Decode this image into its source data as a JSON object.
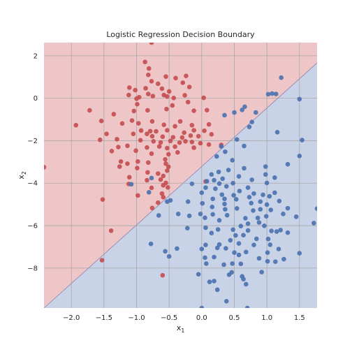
{
  "chart_data": {
    "type": "scatter",
    "title": "Logistic Regression Decision Boundary",
    "xlabel": "x",
    "xlabel_sub": "1",
    "ylabel": "x",
    "ylabel_sub": "2",
    "xlim": [
      -2.42,
      1.77
    ],
    "ylim": [
      -9.88,
      2.62
    ],
    "grid": true,
    "legend": "none",
    "xticks": [
      -2.0,
      -1.5,
      -1.0,
      -0.5,
      0.0,
      0.5,
      1.0,
      1.5
    ],
    "xtick_labels": [
      "−2.0",
      "−1.5",
      "−1.0",
      "−0.5",
      "0.0",
      "0.5",
      "1.0",
      "1.5"
    ],
    "yticks": [
      2,
      0,
      -2,
      -4,
      -6,
      -8
    ],
    "ytick_labels": [
      "2",
      "0",
      "−2",
      "−4",
      "−6",
      "−8"
    ],
    "decision_boundary": {
      "x": [
        -2.42,
        1.77
      ],
      "y": [
        -9.88,
        1.66
      ]
    },
    "colors": {
      "class0": "#c44e52",
      "class1": "#4c72b0",
      "region0": "#efc6c7",
      "region1": "#c9d3e7",
      "grid": "#a8a8a8",
      "boundary": "#9c8fb5"
    },
    "series": [
      {
        "class": 0,
        "points": [
          [
            -0.77,
            2.62
          ],
          [
            -0.87,
            1.71
          ],
          [
            -0.81,
            1.4
          ],
          [
            -0.82,
            1.1
          ],
          [
            -0.55,
            1.02
          ],
          [
            -0.24,
            1.05
          ],
          [
            -0.4,
            0.95
          ],
          [
            -0.77,
            0.8
          ],
          [
            -0.67,
            0.68
          ],
          [
            -0.29,
            0.73
          ],
          [
            -0.19,
            0.53
          ],
          [
            -0.61,
            0.45
          ],
          [
            -0.86,
            0.47
          ],
          [
            -1.11,
            0.5
          ],
          [
            -1.02,
            0.38
          ],
          [
            -0.5,
            0.32
          ],
          [
            -0.58,
            0.15
          ],
          [
            -0.82,
            0.2
          ],
          [
            -1.12,
            0.15
          ],
          [
            -0.26,
            0.14
          ],
          [
            -0.53,
            0.08
          ],
          [
            -0.96,
            0.05
          ],
          [
            -1.0,
            -0.02
          ],
          [
            -0.75,
            0.1
          ],
          [
            -0.43,
            0.01
          ],
          [
            0.03,
            0.02
          ],
          [
            -0.21,
            -0.18
          ],
          [
            -0.45,
            -0.34
          ],
          [
            -0.99,
            -0.28
          ],
          [
            -1.72,
            -0.57
          ],
          [
            -1.04,
            -0.6
          ],
          [
            -0.83,
            -0.57
          ],
          [
            -0.54,
            -0.51
          ],
          [
            0.08,
            -0.56
          ],
          [
            -0.12,
            -0.59
          ],
          [
            -1.35,
            -0.75
          ],
          [
            -1.54,
            -1.07
          ],
          [
            -1.07,
            -1.05
          ],
          [
            -1.22,
            -1.19
          ],
          [
            -0.97,
            -1.18
          ],
          [
            -0.76,
            -1.09
          ],
          [
            -0.58,
            -1.25
          ],
          [
            -0.41,
            -1.32
          ],
          [
            -0.33,
            -1.09
          ],
          [
            -0.15,
            -1.27
          ],
          [
            0.11,
            -1.23
          ],
          [
            -1.93,
            -1.27
          ],
          [
            -0.93,
            -1.52
          ],
          [
            -0.79,
            -1.55
          ],
          [
            -0.7,
            -1.56
          ],
          [
            -0.53,
            -1.51
          ],
          [
            -0.27,
            -1.62
          ],
          [
            -0.12,
            -1.51
          ],
          [
            0.04,
            -1.53
          ],
          [
            -1.46,
            -1.68
          ],
          [
            -1.05,
            -1.68
          ],
          [
            -0.84,
            -1.68
          ],
          [
            -0.76,
            -1.79
          ],
          [
            -0.6,
            -1.81
          ],
          [
            -0.44,
            -1.84
          ],
          [
            -0.3,
            -1.85
          ],
          [
            -0.17,
            -1.76
          ],
          [
            -0.05,
            -1.79
          ],
          [
            0.15,
            -1.7
          ],
          [
            -1.56,
            -1.96
          ],
          [
            -1.3,
            -1.93
          ],
          [
            -0.94,
            -1.98
          ],
          [
            -0.74,
            -2.03
          ],
          [
            -0.63,
            -2.08
          ],
          [
            -0.48,
            -2.01
          ],
          [
            -0.34,
            -2.09
          ],
          [
            -0.25,
            -2.03
          ],
          [
            -0.15,
            -2.06
          ],
          [
            -0.02,
            -2.12
          ],
          [
            0.11,
            -2.18
          ],
          [
            0.3,
            -2.2
          ],
          [
            -1.28,
            -2.3
          ],
          [
            -1.14,
            -2.24
          ],
          [
            -0.84,
            -2.32
          ],
          [
            -0.65,
            -2.27
          ],
          [
            -0.53,
            -2.35
          ],
          [
            -0.41,
            -2.28
          ],
          [
            -0.12,
            -2.33
          ],
          [
            -1.38,
            -2.49
          ],
          [
            -1.01,
            -2.47
          ],
          [
            -0.77,
            -2.61
          ],
          [
            -0.51,
            -2.64
          ],
          [
            -0.37,
            -2.55
          ],
          [
            -0.56,
            -2.88
          ],
          [
            -1.24,
            -2.98
          ],
          [
            -1.14,
            -3.08
          ],
          [
            -0.98,
            -2.98
          ],
          [
            -0.82,
            -3.03
          ],
          [
            -0.55,
            -3.08
          ],
          [
            -1.26,
            -3.22
          ],
          [
            -0.99,
            -3.29
          ],
          [
            -0.51,
            -3.23
          ],
          [
            -0.53,
            -3.41
          ],
          [
            -1.11,
            -3.72
          ],
          [
            -0.83,
            -3.49
          ],
          [
            -0.67,
            -3.55
          ],
          [
            -1.12,
            -4.04
          ],
          [
            -0.59,
            -3.66
          ],
          [
            -0.63,
            -3.83
          ],
          [
            -0.84,
            -3.86
          ],
          [
            -0.55,
            -3.99
          ],
          [
            -0.59,
            -4.1
          ],
          [
            -0.52,
            -4.2
          ],
          [
            -0.77,
            -4.22
          ],
          [
            -0.61,
            -4.49
          ],
          [
            -0.98,
            -4.58
          ],
          [
            -0.59,
            -4.66
          ],
          [
            -0.67,
            -4.92
          ],
          [
            -1.52,
            -4.77
          ],
          [
            -0.76,
            -5.17
          ],
          [
            -2.42,
            -3.25
          ],
          [
            -1.39,
            -6.24
          ],
          [
            -1.53,
            -7.63
          ],
          [
            -0.6,
            -8.34
          ],
          [
            0.06,
            -3.92
          ]
        ]
      },
      {
        "class": 1,
        "points": [
          [
            1.22,
            0.97
          ],
          [
            1.5,
            -0.04
          ],
          [
            1.02,
            0.19
          ],
          [
            1.08,
            0.22
          ],
          [
            1.14,
            0.2
          ],
          [
            0.62,
            -0.55
          ],
          [
            0.66,
            -0.4
          ],
          [
            0.5,
            -0.67
          ],
          [
            0.83,
            -0.67
          ],
          [
            0.35,
            -0.8
          ],
          [
            0.77,
            -1.12
          ],
          [
            0.73,
            -1.35
          ],
          [
            1.16,
            -1.6
          ],
          [
            0.54,
            -1.94
          ],
          [
            0.65,
            -2.25
          ],
          [
            1.54,
            -1.97
          ],
          [
            0.3,
            -2.27
          ],
          [
            0.36,
            -2.52
          ],
          [
            0.23,
            -2.74
          ],
          [
            0.47,
            -2.92
          ],
          [
            0.65,
            -3.3
          ],
          [
            0.98,
            -3.22
          ],
          [
            0.15,
            -3.59
          ],
          [
            0.26,
            -3.47
          ],
          [
            0.41,
            -3.38
          ],
          [
            0.32,
            -3.79
          ],
          [
            0.19,
            -3.86
          ],
          [
            1.5,
            -2.72
          ],
          [
            1.32,
            -3.11
          ],
          [
            0.57,
            -3.68
          ],
          [
            0.77,
            -3.84
          ],
          [
            1.12,
            -3.74
          ],
          [
            -0.77,
            -3.76
          ],
          [
            -1.08,
            -4.05
          ],
          [
            0.08,
            -3.91
          ],
          [
            0.27,
            -4.02
          ],
          [
            0.48,
            -4.0
          ],
          [
            0.71,
            -4.21
          ],
          [
            0.98,
            -3.59
          ],
          [
            1.0,
            -3.99
          ],
          [
            -0.15,
            -4.03
          ],
          [
            0.06,
            -4.21
          ],
          [
            0.21,
            -4.26
          ],
          [
            0.38,
            -4.15
          ],
          [
            0.58,
            -4.37
          ],
          [
            0.8,
            -4.49
          ],
          [
            -0.81,
            -4.43
          ],
          [
            0.0,
            -4.45
          ],
          [
            0.31,
            -4.54
          ],
          [
            0.49,
            -4.57
          ],
          [
            0.73,
            -4.66
          ],
          [
            0.94,
            -4.55
          ],
          [
            1.04,
            -4.62
          ],
          [
            1.12,
            -4.45
          ],
          [
            1.19,
            -4.84
          ],
          [
            0.17,
            -4.74
          ],
          [
            0.35,
            -4.74
          ],
          [
            0.53,
            -4.76
          ],
          [
            0.76,
            -4.94
          ],
          [
            0.9,
            -4.87
          ],
          [
            -0.48,
            -4.81
          ],
          [
            -0.53,
            -4.87
          ],
          [
            -0.21,
            -4.87
          ],
          [
            0.01,
            -4.95
          ],
          [
            0.16,
            -5.12
          ],
          [
            0.35,
            -4.98
          ],
          [
            0.36,
            -5.23
          ],
          [
            0.54,
            -5.19
          ],
          [
            0.79,
            -5.29
          ],
          [
            0.9,
            -5.23
          ],
          [
            1.0,
            -5.01
          ],
          [
            1.06,
            -5.26
          ],
          [
            1.25,
            -5.45
          ],
          [
            1.32,
            -5.18
          ],
          [
            -0.66,
            -5.52
          ],
          [
            -0.36,
            -5.45
          ],
          [
            -0.19,
            -5.54
          ],
          [
            -0.02,
            -5.45
          ],
          [
            0.05,
            -5.63
          ],
          [
            0.17,
            -5.47
          ],
          [
            0.27,
            -5.75
          ],
          [
            0.39,
            -5.51
          ],
          [
            0.67,
            -5.65
          ],
          [
            0.71,
            -5.91
          ],
          [
            0.86,
            -5.64
          ],
          [
            0.88,
            -5.85
          ],
          [
            0.99,
            -5.56
          ],
          [
            1.45,
            -5.58
          ],
          [
            1.77,
            -5.2
          ],
          [
            1.72,
            -5.88
          ],
          [
            -0.22,
            -6.12
          ],
          [
            0.06,
            -6.1
          ],
          [
            0.25,
            -6.18
          ],
          [
            0.48,
            -6.19
          ],
          [
            0.6,
            -6.02
          ],
          [
            0.71,
            -6.23
          ],
          [
            0.96,
            -6.01
          ],
          [
            1.07,
            -6.25
          ],
          [
            1.15,
            -6.28
          ],
          [
            1.21,
            -6.21
          ],
          [
            1.32,
            -6.33
          ],
          [
            0.15,
            -6.35
          ],
          [
            0.52,
            -6.46
          ],
          [
            0.64,
            -6.45
          ],
          [
            0.84,
            -6.62
          ],
          [
            1.02,
            -6.63
          ],
          [
            0.44,
            -6.69
          ],
          [
            0.57,
            -6.84
          ],
          [
            0.8,
            -6.91
          ],
          [
            1.05,
            -6.9
          ],
          [
            0.06,
            -6.91
          ],
          [
            0.27,
            -6.89
          ],
          [
            0.37,
            -7.07
          ],
          [
            0.24,
            -7.05
          ],
          [
            0.0,
            -7.1
          ],
          [
            0.5,
            -7.27
          ],
          [
            0.57,
            -7.38
          ],
          [
            0.68,
            -7.24
          ],
          [
            1.01,
            -7.27
          ],
          [
            1.18,
            -7.1
          ],
          [
            1.26,
            -7.58
          ],
          [
            0.47,
            -7.79
          ],
          [
            0.6,
            -7.8
          ],
          [
            0.88,
            -7.54
          ],
          [
            1.01,
            -7.68
          ],
          [
            1.13,
            -7.7
          ],
          [
            0.46,
            -8.2
          ],
          [
            0.62,
            -8.39
          ],
          [
            0.64,
            -8.52
          ],
          [
            0.92,
            -8.19
          ],
          [
            -0.05,
            -8.29
          ],
          [
            0.42,
            -8.31
          ],
          [
            0.19,
            -8.61
          ],
          [
            -0.56,
            -7.21
          ],
          [
            -0.5,
            -7.45
          ],
          [
            -0.78,
            -6.86
          ],
          [
            -0.38,
            -7.08
          ],
          [
            0.05,
            -7.51
          ],
          [
            0.19,
            -7.48
          ],
          [
            0.07,
            -7.79
          ],
          [
            0.34,
            -7.84
          ],
          [
            0.12,
            -8.65
          ],
          [
            0.68,
            -8.76
          ],
          [
            0.24,
            -9.02
          ],
          [
            0.38,
            -9.56
          ],
          [
            0.0,
            -9.88
          ],
          [
            0.7,
            -9.88
          ],
          [
            1.5,
            -7.3
          ]
        ]
      }
    ]
  }
}
